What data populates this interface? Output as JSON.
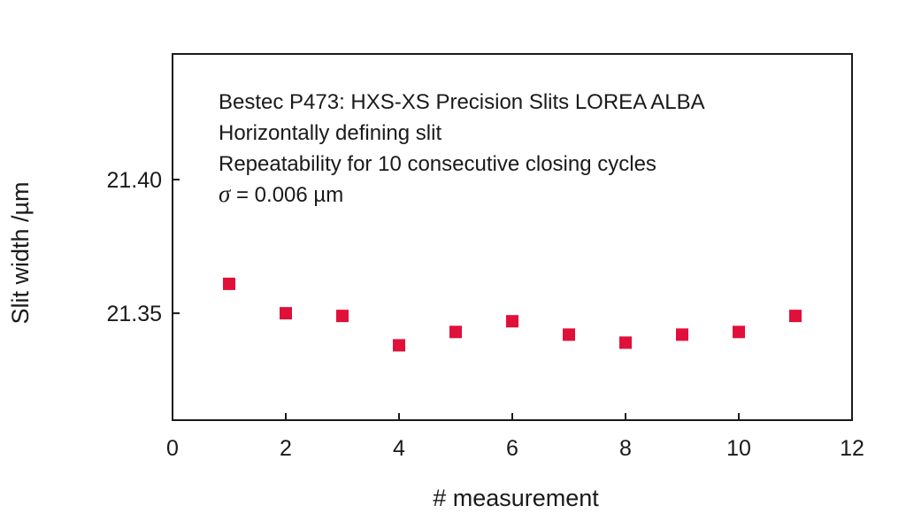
{
  "chart_data": {
    "type": "scatter",
    "xlabel": "# measurement",
    "ylabel": "Slit width /µm",
    "xlim": [
      0,
      12
    ],
    "ylim": [
      21.31,
      21.447
    ],
    "x_ticks": [
      0,
      2,
      4,
      6,
      8,
      10,
      12
    ],
    "x_tick_labels": [
      "0",
      "2",
      "4",
      "6",
      "8",
      "10",
      "12"
    ],
    "y_ticks": [
      21.35,
      21.4
    ],
    "y_tick_labels": [
      "21.35",
      "21.40"
    ],
    "grid": false,
    "legend": "none",
    "marker_color": "#e0103a",
    "marker_shape": "square",
    "annotation_lines": [
      "Bestec P473: HXS-XS Precision Slits LOREA ALBA",
      "Horizontally defining slit",
      "Repeatability for 10 consecutive closing cycles"
    ],
    "sigma_line": {
      "symbol": "σ",
      "text": " = 0.006 µm"
    },
    "x": [
      1,
      2,
      3,
      4,
      5,
      6,
      7,
      8,
      9,
      10,
      11
    ],
    "y": [
      21.361,
      21.35,
      21.349,
      21.338,
      21.343,
      21.347,
      21.342,
      21.339,
      21.342,
      21.343,
      21.349
    ]
  }
}
